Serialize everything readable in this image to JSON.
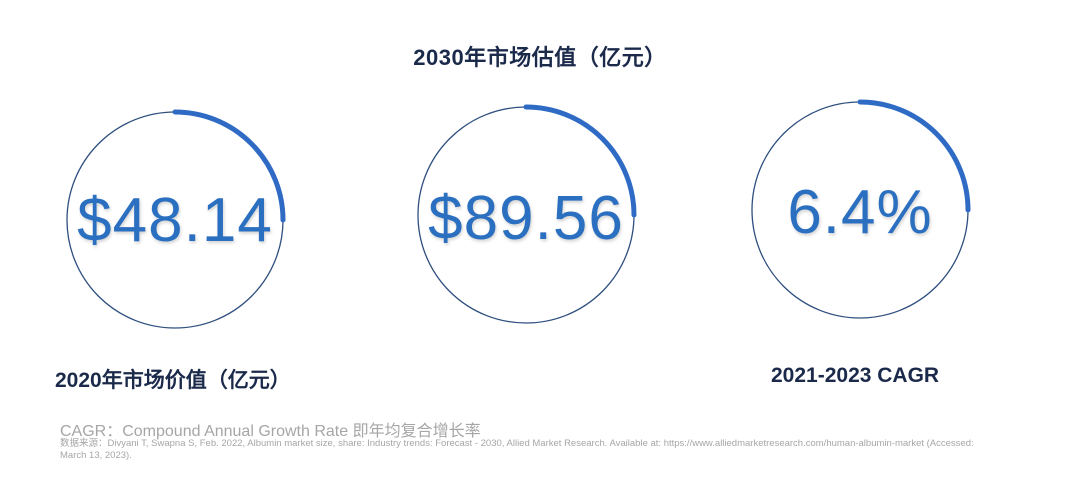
{
  "title": "2030年市场估值（亿元）",
  "metrics": [
    {
      "value": "$48.14",
      "label": "2020年市场价值（亿元）"
    },
    {
      "value": "$89.56",
      "label": ""
    },
    {
      "value": "6.4%",
      "label": "2021-2023 CAGR"
    }
  ],
  "footnote": "CAGR：Compound Annual Growth Rate 即年均复合增长率",
  "source": "数据来源：Divyani T, Swapna S, Feb. 2022, Albumin market size, share: Industry trends: Forecast - 2030, Allied Market Research. Available at: https://www.alliedmarketresearch.com/human-albumin-market (Accessed: March 13, 2023).",
  "colors": {
    "ring_outline": "#2f4f7f",
    "ring_accent": "#2f6bc4",
    "value_text": "#2b6fc0",
    "heading_text": "#1b2a4a",
    "footnote_text": "#a6a6a6"
  }
}
